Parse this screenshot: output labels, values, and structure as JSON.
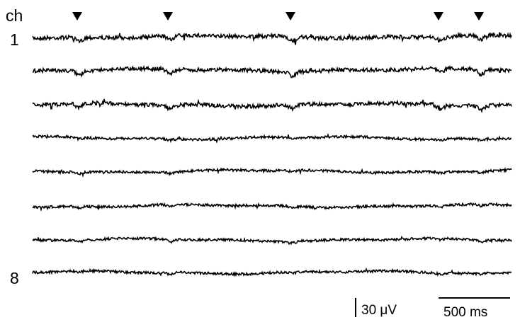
{
  "figure": {
    "channel_header": "ch",
    "first_channel_label": "1",
    "last_channel_label": "8",
    "channel_count": 8,
    "event_markers_count": 5,
    "scale_bars": {
      "voltage": {
        "label": "30 μV"
      },
      "time": {
        "label": "500 ms"
      }
    }
  },
  "colors": {
    "trace": "#000000",
    "background": "#ffffff"
  }
}
